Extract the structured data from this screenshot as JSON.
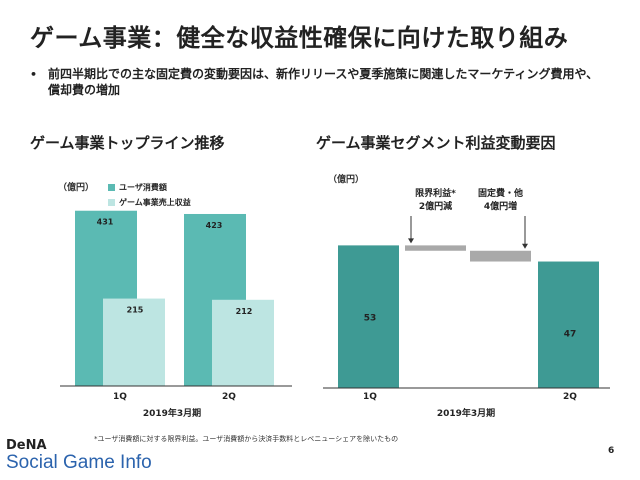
{
  "slide": {
    "title": "ゲーム事業：健全な収益性確保に向けた取り組み",
    "bullet_dot": "•",
    "bullet_text": "前四半期比での主な固定費の変動要因は、新作リリースや夏季施策に関連したマーケティング費用や、償却費の増加",
    "footnote": "*ユーザ消費額に対する限界利益。ユーザ消費額から決済手数料とレベニューシェアを除いたもの",
    "page_number": "6",
    "brand_small": "DeNA",
    "brand_big": "Social Game Info"
  },
  "chart_data": [
    {
      "type": "bar",
      "title": "ゲーム事業トップライン推移",
      "unit": "（億円）",
      "xlabel": "2019年3月期",
      "categories": [
        "1Q",
        "2Q"
      ],
      "series": [
        {
          "name": "ユーザ消費額",
          "values": [
            431,
            423
          ],
          "color": "#5bbab3"
        },
        {
          "name": "ゲーム事業売上収益",
          "values": [
            215,
            212
          ],
          "color": "#bde5e2"
        }
      ],
      "ylim": [
        0,
        450
      ]
    },
    {
      "type": "bar",
      "title": "ゲーム事業セグメント利益変動要因",
      "unit": "（億円）",
      "xlabel": "2019年3月期",
      "categories": [
        "1Q",
        "",
        "",
        "2Q"
      ],
      "steps": [
        {
          "label": "1Q",
          "kind": "total",
          "value": 53,
          "data_label": "53",
          "color": "#3e9a94"
        },
        {
          "label": "",
          "kind": "delta",
          "value": -2,
          "annotation": [
            "限界利益*",
            "2億円減"
          ],
          "color": "#a9a9a9"
        },
        {
          "label": "",
          "kind": "delta",
          "value": -4,
          "annotation": [
            "固定費・他",
            "4億円増"
          ],
          "color": "#a9a9a9"
        },
        {
          "label": "2Q",
          "kind": "total",
          "value": 47,
          "data_label": "47",
          "color": "#3e9a94"
        }
      ],
      "ylim": [
        0,
        55
      ]
    }
  ]
}
